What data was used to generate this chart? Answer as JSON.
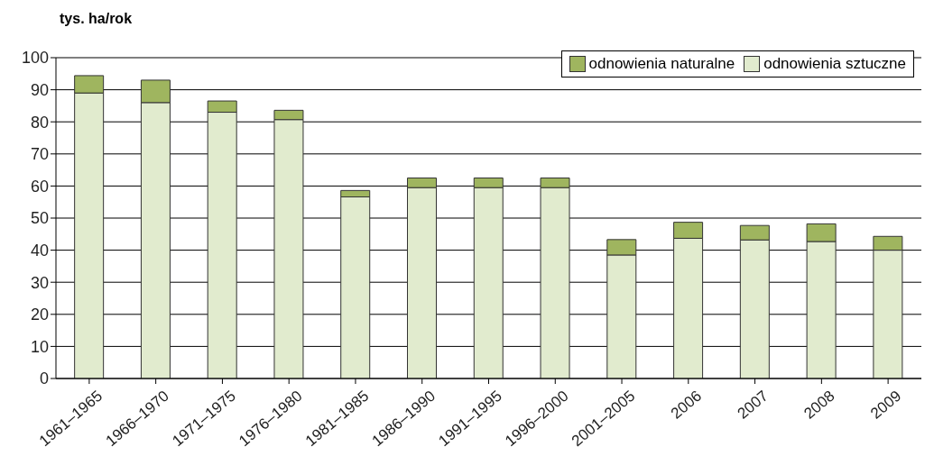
{
  "chart_data": {
    "type": "bar",
    "stacked": true,
    "ylabel": "tys. ha/rok",
    "categories": [
      "1961–1965",
      "1966–1970",
      "1971–1975",
      "1976–1980",
      "1981–1985",
      "1986–1990",
      "1991–1995",
      "1996–2000",
      "2001–2005",
      "2006",
      "2007",
      "2008",
      "2009"
    ],
    "series": [
      {
        "name": "odnowienia sztuczne",
        "color": "#e1ebce",
        "values": [
          89,
          86,
          83,
          80.7,
          56.6,
          59.5,
          59.5,
          59.5,
          38.5,
          43.7,
          43.2,
          42.7,
          40
        ]
      },
      {
        "name": "odnowienia naturalne",
        "color": "#9fb55f",
        "values": [
          5.4,
          7,
          3.5,
          2.9,
          2,
          3,
          3,
          3,
          4.8,
          5,
          4.5,
          5.5,
          4.3
        ]
      }
    ],
    "ylim": [
      0,
      100
    ],
    "yticks": [
      0,
      10,
      20,
      30,
      40,
      50,
      60,
      70,
      80,
      90,
      100
    ],
    "grid": "y",
    "legend": "top right"
  }
}
